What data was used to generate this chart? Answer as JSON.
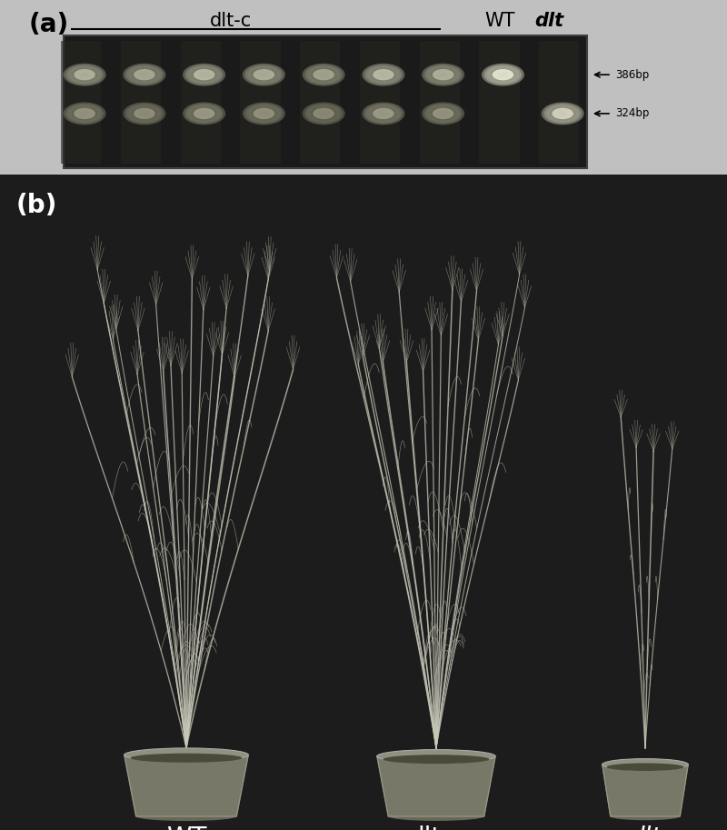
{
  "fig_width": 8.0,
  "fig_height": 9.13,
  "fig_bg_color": "#c0c0c0",
  "panel_a": {
    "label": "(a)",
    "label_fontsize": 20,
    "label_fontweight": "bold",
    "gel_bg": "#111111",
    "dltc_label": "dlt-c",
    "wt_label": "WT",
    "dlt_label": "dlt",
    "band1_label": "386bp",
    "band2_label": "324bp",
    "num_dltc_lanes": 7,
    "num_wt_lanes": 1,
    "num_dlt_lanes": 1
  },
  "panel_b": {
    "label": "(b)",
    "label_fontsize": 20,
    "label_fontweight": "bold",
    "bg_color": "#1a1a1a",
    "wt_label": "WT",
    "dltc_label": "dlt-c",
    "dlt_label": "dlt",
    "label_color": "#ffffff",
    "label_fontsize_b": 20
  }
}
